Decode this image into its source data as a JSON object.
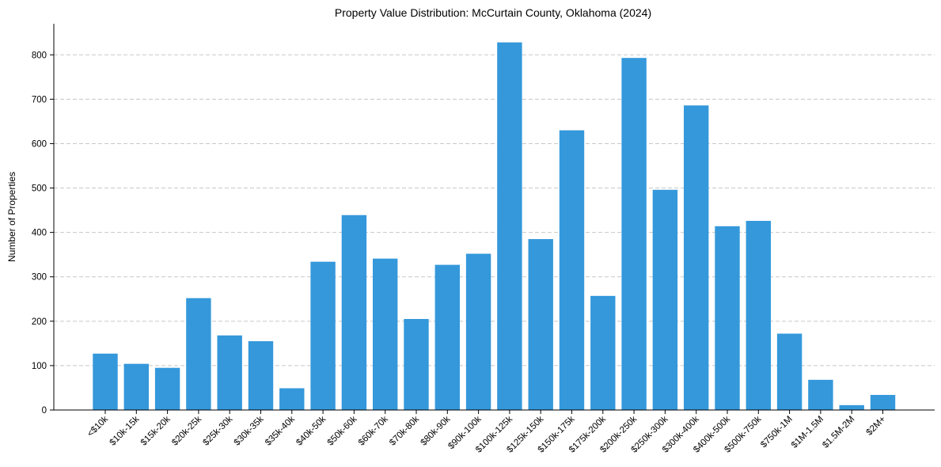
{
  "chart_data": {
    "type": "bar",
    "title": "Property Value Distribution: McCurtain County, Oklahoma (2024)",
    "xlabel": "",
    "ylabel": "Number of Properties",
    "categories": [
      "<$10k",
      "$10k-15k",
      "$15k-20k",
      "$20k-25k",
      "$25k-30k",
      "$30k-35k",
      "$35k-40k",
      "$40k-50k",
      "$50k-60k",
      "$60k-70k",
      "$70k-80k",
      "$80k-90k",
      "$90k-100k",
      "$100k-125k",
      "$125k-150k",
      "$150k-175k",
      "$175k-200k",
      "$200k-250k",
      "$250k-300k",
      "$300k-400k",
      "$400k-500k",
      "$500k-750k",
      "$750k-1M",
      "$1M-1.5M",
      "$1.5M-2M",
      "$2M+"
    ],
    "values": [
      127,
      104,
      95,
      252,
      168,
      155,
      49,
      334,
      439,
      341,
      205,
      327,
      352,
      828,
      385,
      630,
      257,
      793,
      496,
      686,
      414,
      426,
      172,
      68,
      11,
      34
    ],
    "yticks": [
      0,
      100,
      200,
      300,
      400,
      500,
      600,
      700,
      800
    ],
    "ylim": [
      0,
      870
    ],
    "bar_color": "#3498db",
    "grid": true
  }
}
